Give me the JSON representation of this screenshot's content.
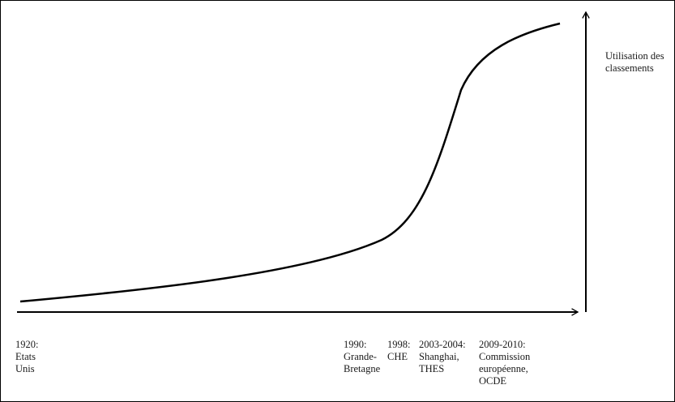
{
  "y_axis_label": [
    "Utilisation des",
    "classements"
  ],
  "milestones": [
    {
      "lines": [
        "1920:",
        "Etats",
        "Unis"
      ]
    },
    {
      "lines": [
        "1990:",
        "Grande-",
        "Bretagne"
      ]
    },
    {
      "lines": [
        "1998:",
        "CHE"
      ]
    },
    {
      "lines": [
        "2003-2004:",
        "Shanghai,",
        "THES"
      ]
    },
    {
      "lines": [
        "2009-2010:",
        "Commission",
        "européenne,",
        "OCDE"
      ]
    }
  ],
  "colors": {
    "line": "#000000",
    "text": "#1a1a1a"
  }
}
